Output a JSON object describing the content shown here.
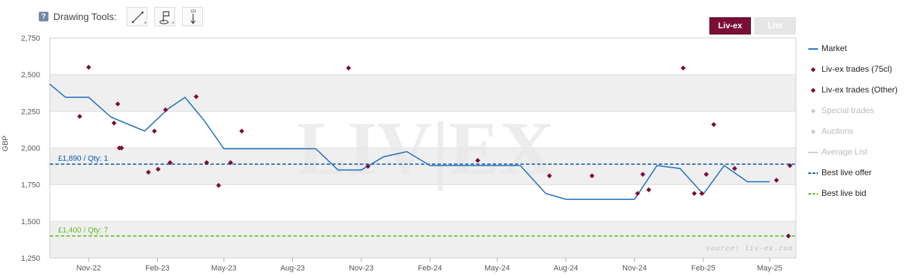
{
  "toolbar": {
    "help_label": "?",
    "title": "Drawing Tools:",
    "tools": [
      {
        "name": "line-tool",
        "icon": "diagonal-line-icon"
      },
      {
        "name": "annotation-tool",
        "icon": "flag-icon"
      },
      {
        "name": "measure-tool",
        "icon": "vertical-measure-icon",
        "label": "123"
      }
    ]
  },
  "toggle": {
    "liv_ex": "Liv-ex",
    "list": "List"
  },
  "colors": {
    "market": "#1f6fbf",
    "trades": "#7a0f36",
    "offer": "#0a5aa6",
    "bid": "#5fb91f",
    "muted": "#cccccc",
    "band": "#efefef"
  },
  "chart_data": {
    "type": "line",
    "ylabel": "GBP",
    "ylim": [
      1250,
      2750
    ],
    "yticks": [
      1250,
      1500,
      1750,
      2000,
      2250,
      2500,
      2750
    ],
    "ytick_labels": [
      "1,250",
      "1,500",
      "1,750",
      "2,000",
      "2,250",
      "2,500",
      "2,750"
    ],
    "xlim": [
      "2022-09-10",
      "2025-06-05"
    ],
    "xticks": [
      {
        "date": "2022-11-01",
        "label": "Nov-22"
      },
      {
        "date": "2023-02-01",
        "label": "Feb-23"
      },
      {
        "date": "2023-05-01",
        "label": "May-23"
      },
      {
        "date": "2023-08-01",
        "label": "Aug-23"
      },
      {
        "date": "2023-11-01",
        "label": "Nov-23"
      },
      {
        "date": "2024-02-01",
        "label": "Feb-24"
      },
      {
        "date": "2024-05-01",
        "label": "May-24"
      },
      {
        "date": "2024-08-01",
        "label": "Aug-24"
      },
      {
        "date": "2024-11-01",
        "label": "Nov-24"
      },
      {
        "date": "2025-02-01",
        "label": "Feb-25"
      },
      {
        "date": "2025-05-01",
        "label": "May-25"
      }
    ],
    "watermark": "LIV|EX",
    "source": "source: liv-ex.com",
    "series": [
      {
        "name": "Market",
        "kind": "line",
        "points": [
          [
            "2022-09-10",
            2435
          ],
          [
            "2022-10-01",
            2345
          ],
          [
            "2022-11-01",
            2345
          ],
          [
            "2022-12-01",
            2210
          ],
          [
            "2023-01-15",
            2115
          ],
          [
            "2023-02-15",
            2265
          ],
          [
            "2023-03-10",
            2345
          ],
          [
            "2023-04-05",
            2185
          ],
          [
            "2023-05-01",
            1995
          ],
          [
            "2023-06-01",
            1995
          ],
          [
            "2023-07-01",
            1995
          ],
          [
            "2023-08-01",
            1995
          ],
          [
            "2023-09-01",
            1995
          ],
          [
            "2023-10-01",
            1850
          ],
          [
            "2023-11-01",
            1850
          ],
          [
            "2023-12-01",
            1940
          ],
          [
            "2024-01-01",
            1975
          ],
          [
            "2024-02-01",
            1880
          ],
          [
            "2024-03-01",
            1880
          ],
          [
            "2024-04-01",
            1880
          ],
          [
            "2024-05-01",
            1880
          ],
          [
            "2024-06-01",
            1880
          ],
          [
            "2024-07-05",
            1690
          ],
          [
            "2024-08-01",
            1650
          ],
          [
            "2024-09-01",
            1650
          ],
          [
            "2024-10-01",
            1650
          ],
          [
            "2024-11-01",
            1650
          ],
          [
            "2024-12-01",
            1880
          ],
          [
            "2025-01-01",
            1860
          ],
          [
            "2025-02-01",
            1685
          ],
          [
            "2025-03-01",
            1880
          ],
          [
            "2025-04-01",
            1770
          ],
          [
            "2025-05-01",
            1770
          ]
        ]
      },
      {
        "name": "Liv-ex trades (75cl)",
        "kind": "scatter",
        "points": [
          [
            "2022-11-01",
            2550
          ],
          [
            "2022-12-10",
            2300
          ],
          [
            "2023-03-25",
            2350
          ],
          [
            "2023-10-15",
            2545
          ],
          [
            "2025-01-05",
            2545
          ],
          [
            "2025-02-15",
            2160
          ]
        ]
      },
      {
        "name": "Liv-ex trades (Other)",
        "kind": "scatter",
        "points": [
          [
            "2022-10-20",
            2215
          ],
          [
            "2022-12-05",
            2170
          ],
          [
            "2022-12-12",
            2000
          ],
          [
            "2022-12-15",
            2000
          ],
          [
            "2023-01-20",
            1835
          ],
          [
            "2023-01-28",
            2115
          ],
          [
            "2023-02-02",
            1855
          ],
          [
            "2023-02-12",
            2260
          ],
          [
            "2023-02-18",
            1900
          ],
          [
            "2023-04-08",
            1900
          ],
          [
            "2023-04-24",
            1745
          ],
          [
            "2023-05-10",
            1900
          ],
          [
            "2023-05-25",
            2115
          ],
          [
            "2023-11-10",
            1875
          ],
          [
            "2024-04-05",
            1915
          ],
          [
            "2024-07-10",
            1810
          ],
          [
            "2024-09-05",
            1810
          ],
          [
            "2024-11-05",
            1690
          ],
          [
            "2024-11-12",
            1820
          ],
          [
            "2024-11-20",
            1715
          ],
          [
            "2025-01-20",
            1690
          ],
          [
            "2025-01-30",
            1690
          ],
          [
            "2025-02-05",
            1820
          ],
          [
            "2025-03-15",
            1860
          ],
          [
            "2025-05-10",
            1780
          ],
          [
            "2025-05-28",
            1880
          ],
          [
            "2025-05-26",
            1400
          ]
        ]
      }
    ],
    "plot_lines": [
      {
        "name": "Best live offer",
        "value": 1890,
        "label": "£1,890 / Qty: 1"
      },
      {
        "name": "Best live bid",
        "value": 1400,
        "label": "£1,400 / Qty: 7"
      }
    ],
    "legend": [
      {
        "label": "Market",
        "symbol": "line",
        "active": true
      },
      {
        "label": "Liv-ex trades (75cl)",
        "symbol": "diamond",
        "active": true
      },
      {
        "label": "Liv-ex trades (Other)",
        "symbol": "diamond",
        "active": true
      },
      {
        "label": "Special trades",
        "symbol": "diamond",
        "active": false
      },
      {
        "label": "Auctions",
        "symbol": "diamond",
        "active": false
      },
      {
        "label": "Average List",
        "symbol": "line",
        "active": false
      },
      {
        "label": "Best live offer",
        "symbol": "dash",
        "active": true
      },
      {
        "label": "Best live bid",
        "symbol": "dash",
        "active": true
      }
    ],
    "legend_position": "right",
    "grid": true
  }
}
